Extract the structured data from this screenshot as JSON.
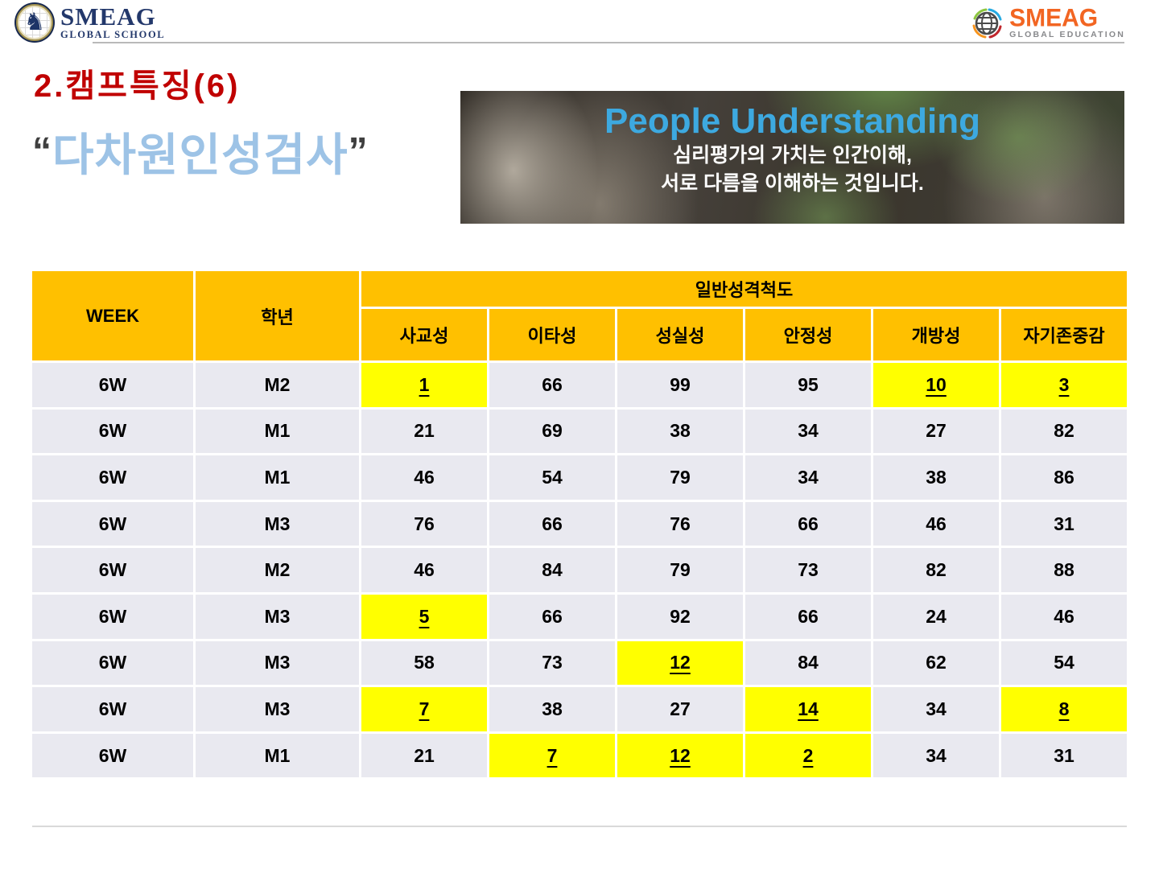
{
  "header": {
    "logo_left": {
      "brand": "SMEAG",
      "sub": "GLOBAL SCHOOL"
    },
    "logo_right": {
      "brand": "SMEAG",
      "sub": "GLOBAL EDUCATION"
    }
  },
  "title": "2.캠프특징(6)",
  "subtitle": {
    "open_quote": "“",
    "text": "다차원인성검사",
    "close_quote": "”"
  },
  "banner": {
    "heading": "People Understanding",
    "line1": "심리평가의 가치는 인간이해,",
    "line2": "서로 다름을 이해하는 것입니다."
  },
  "table": {
    "col_week": "WEEK",
    "col_grade": "학년",
    "group_header": "일반성격척도",
    "sub_headers": [
      "사교성",
      "이타성",
      "성실성",
      "안정성",
      "개방성",
      "자기존중감"
    ],
    "rows": [
      {
        "week": "6W",
        "grade": "M2",
        "values": [
          {
            "v": "1",
            "hl": true
          },
          {
            "v": "66"
          },
          {
            "v": "99"
          },
          {
            "v": "95"
          },
          {
            "v": "10",
            "hl": true
          },
          {
            "v": "3",
            "hl": true
          }
        ]
      },
      {
        "week": "6W",
        "grade": "M1",
        "values": [
          {
            "v": "21"
          },
          {
            "v": "69"
          },
          {
            "v": "38"
          },
          {
            "v": "34"
          },
          {
            "v": "27"
          },
          {
            "v": "82"
          }
        ]
      },
      {
        "week": "6W",
        "grade": "M1",
        "values": [
          {
            "v": "46"
          },
          {
            "v": "54"
          },
          {
            "v": "79"
          },
          {
            "v": "34"
          },
          {
            "v": "38"
          },
          {
            "v": "86"
          }
        ]
      },
      {
        "week": "6W",
        "grade": "M3",
        "values": [
          {
            "v": "76"
          },
          {
            "v": "66"
          },
          {
            "v": "76"
          },
          {
            "v": "66"
          },
          {
            "v": "46"
          },
          {
            "v": "31"
          }
        ]
      },
      {
        "week": "6W",
        "grade": "M2",
        "values": [
          {
            "v": "46"
          },
          {
            "v": "84"
          },
          {
            "v": "79"
          },
          {
            "v": "73"
          },
          {
            "v": "82"
          },
          {
            "v": "88"
          }
        ]
      },
      {
        "week": "6W",
        "grade": "M3",
        "values": [
          {
            "v": "5",
            "hl": true
          },
          {
            "v": "66"
          },
          {
            "v": "92"
          },
          {
            "v": "66"
          },
          {
            "v": "24"
          },
          {
            "v": "46"
          }
        ]
      },
      {
        "week": "6W",
        "grade": "M3",
        "values": [
          {
            "v": "58"
          },
          {
            "v": "73"
          },
          {
            "v": "12",
            "hl": true
          },
          {
            "v": "84"
          },
          {
            "v": "62"
          },
          {
            "v": "54"
          }
        ]
      },
      {
        "week": "6W",
        "grade": "M3",
        "values": [
          {
            "v": "7",
            "hl": true
          },
          {
            "v": "38"
          },
          {
            "v": "27"
          },
          {
            "v": "14",
            "hl": true
          },
          {
            "v": "34"
          },
          {
            "v": "8",
            "hl": true
          }
        ]
      },
      {
        "week": "6W",
        "grade": "M1",
        "values": [
          {
            "v": "21"
          },
          {
            "v": "7",
            "hl": true
          },
          {
            "v": "12",
            "hl": true
          },
          {
            "v": "2",
            "hl": true
          },
          {
            "v": "34"
          },
          {
            "v": "31"
          }
        ]
      }
    ]
  },
  "colors": {
    "title_red": "#c00000",
    "subtitle_blue": "#9dc3e6",
    "banner_heading_blue": "#3da9e0",
    "table_header_orange": "#ffc000",
    "table_row_bg": "#e9e9f0",
    "highlight_yellow": "#ffff00",
    "brand_navy": "#23386b",
    "brand_orange": "#f26522"
  }
}
